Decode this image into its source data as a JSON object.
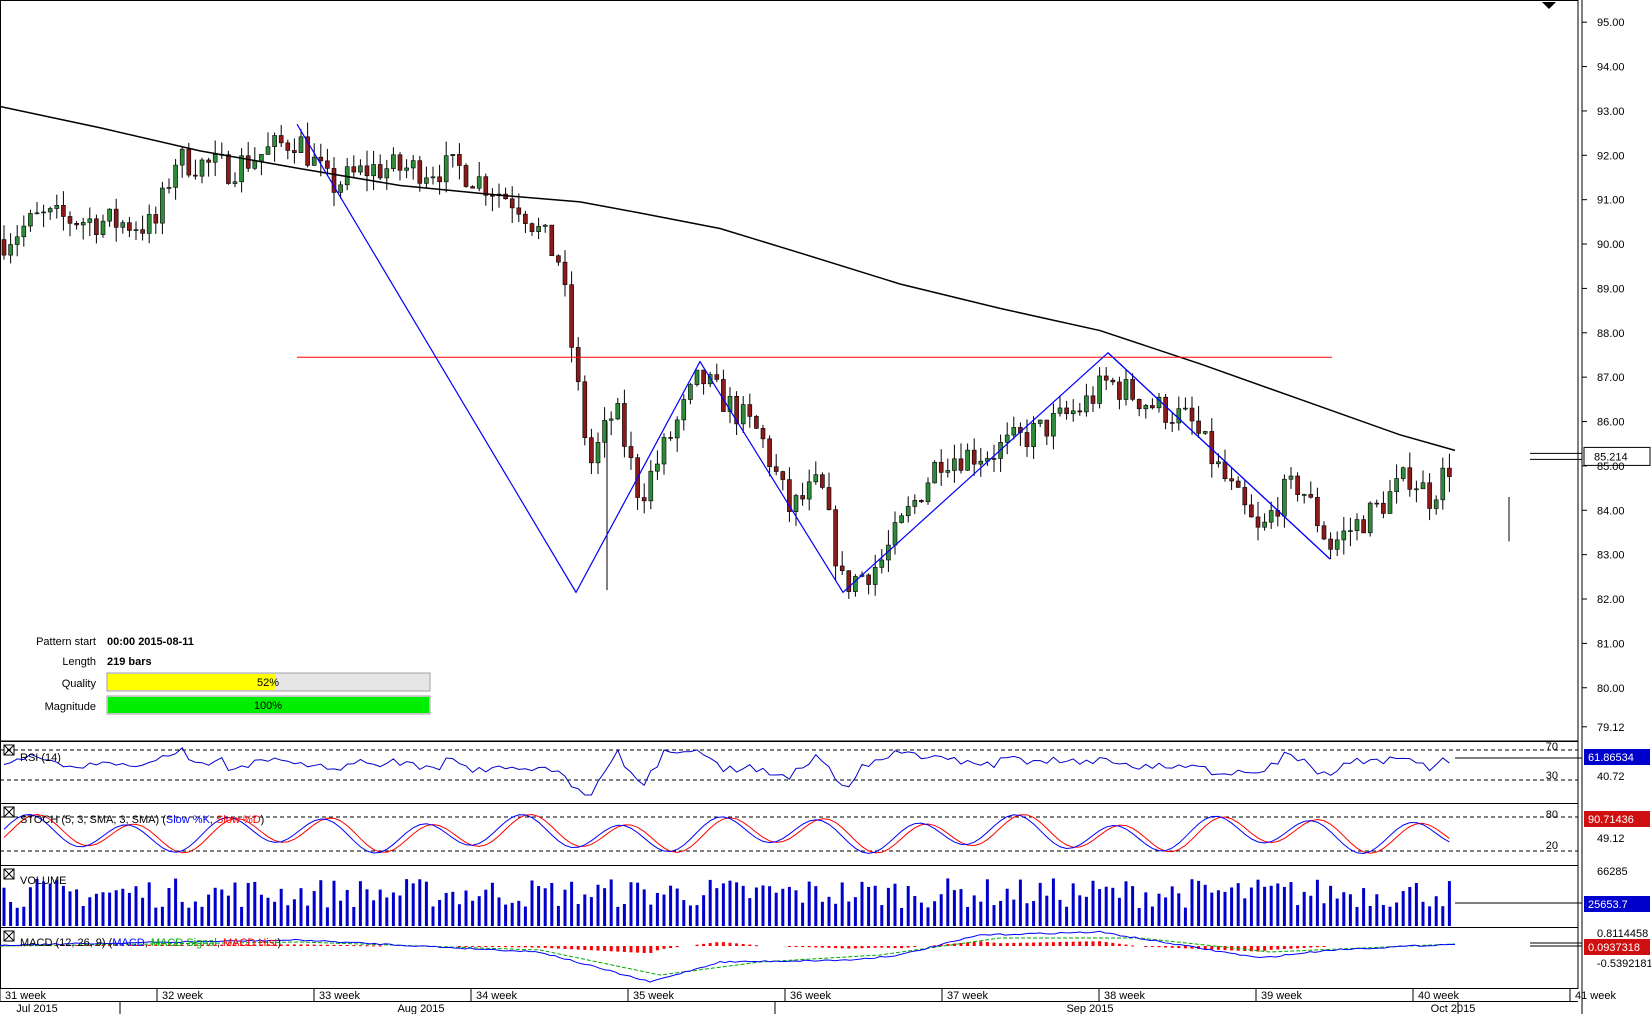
{
  "chart_data": {
    "type": "candlestick",
    "price_axis": {
      "ticks": [
        "95.00",
        "94.00",
        "93.00",
        "92.00",
        "91.00",
        "90.00",
        "89.00",
        "88.00",
        "87.00",
        "86.00",
        "85.00",
        "84.00",
        "83.00",
        "82.00",
        "81.00",
        "80.00",
        "79.12"
      ],
      "range": [
        78.8,
        95.5
      ],
      "current": "85.214"
    },
    "week_labels": [
      "31 week",
      "32 week",
      "33 week",
      "34 week",
      "35 week",
      "36 week",
      "37 week",
      "38 week",
      "39 week",
      "40 week",
      "41 week"
    ],
    "month_labels": [
      "Jul 2015",
      "Aug 2015",
      "Sep 2015",
      "Oct 2015"
    ],
    "moving_average": [
      [
        0,
        93.1
      ],
      [
        100,
        92.62
      ],
      [
        200,
        92.1
      ],
      [
        300,
        91.7
      ],
      [
        400,
        91.32
      ],
      [
        500,
        91.1
      ],
      [
        580,
        90.95
      ],
      [
        640,
        90.7
      ],
      [
        720,
        90.35
      ],
      [
        800,
        89.8
      ],
      [
        900,
        89.1
      ],
      [
        1000,
        88.55
      ],
      [
        1100,
        88.05
      ],
      [
        1200,
        87.3
      ],
      [
        1300,
        86.5
      ],
      [
        1400,
        85.7
      ],
      [
        1455,
        85.35
      ]
    ],
    "pattern_lines": [
      [
        297,
        92.7
      ],
      [
        576,
        82.15
      ],
      [
        700,
        87.35
      ],
      [
        843,
        82.15
      ],
      [
        1108,
        87.55
      ],
      [
        1330,
        82.9
      ]
    ],
    "neckline": [
      [
        297,
        87.45
      ],
      [
        1332,
        87.45
      ]
    ],
    "pattern_info": {
      "start_label": "Pattern start",
      "start_value": "00:00 2015-08-11",
      "length_label": "Length",
      "length_value": "219 bars",
      "quality_label": "Quality",
      "quality_value": "52%",
      "quality_fraction": 0.52,
      "magnitude_label": "Magnitude",
      "magnitude_value": "100%",
      "magnitude_fraction": 1.0,
      "quality_color": "#ffff00",
      "magnitude_color": "#00ee00"
    },
    "indicators": {
      "rsi": {
        "label": "RSI (14)",
        "value": "61.86534",
        "levels": [
          "70",
          "30"
        ],
        "extra_tick": "40.72"
      },
      "stoch": {
        "label_prefix": "STOCH (5, 3, SMA, 3, SMA) (",
        "label_k": "Slow %K",
        "label_sep": ", ",
        "label_d": "Slow %D",
        "label_suffix": ")",
        "value": "90.71436",
        "levels": [
          "80",
          "20"
        ],
        "extra_tick": "49.12"
      },
      "volume": {
        "label": "VOLUME",
        "value": "25653.7",
        "top_tick": "66285"
      },
      "macd": {
        "label_prefix": "MACD (12, 26, 9) (",
        "label_macd": "MACD",
        "label_sep": ", ",
        "label_signal": "MACD Signal",
        "label_hist": "MACD Hist",
        "label_suffix": ")",
        "value": "0.0937318",
        "low_tick": "-0.5392181",
        "top_tick": "0.8114458"
      }
    },
    "colors": {
      "up": "#2e8b3a",
      "down": "#8b1a1a",
      "ma": "#000000",
      "pattern": "#0000ff",
      "neckline": "#ff0000",
      "rsi": "#0000cc",
      "stoch_k": "#0000ff",
      "stoch_d": "#ff0000",
      "volume": "#0000cc",
      "macd": "#0000ff",
      "signal": "#00aa00",
      "hist": "#ff0000",
      "tag_bg": "#0000cc"
    }
  }
}
